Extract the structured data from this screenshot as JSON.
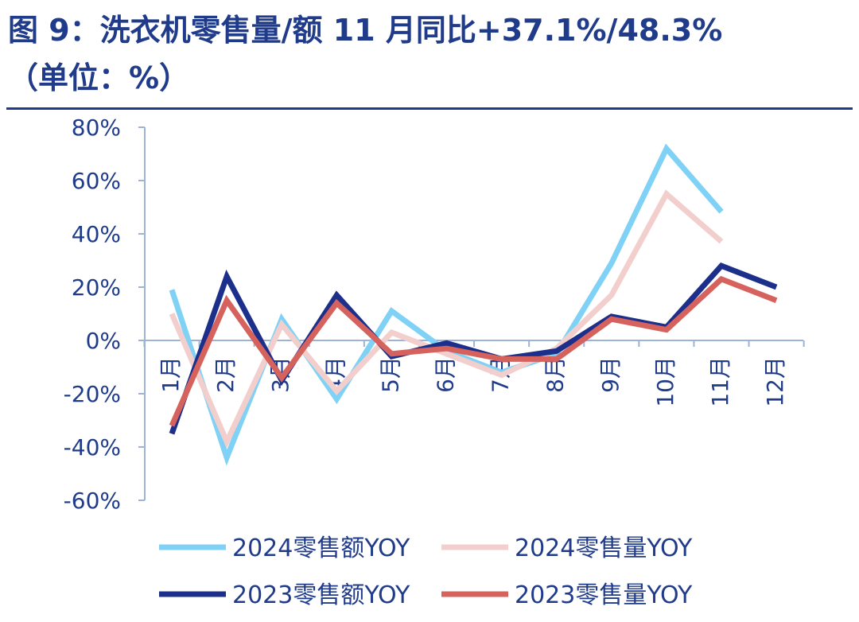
{
  "title_line1": "图 9：洗衣机零售量/额 11 月同比+37.1%/48.3%",
  "title_line2": "（单位：%）",
  "colors": {
    "title": "#1f3b8a",
    "axis": "#9db3d6",
    "s2024_amount": "#7fd2f5",
    "s2024_volume": "#f2cfcc",
    "s2023_amount": "#1c2f8a",
    "s2023_volume": "#d6625e"
  },
  "chart_data": {
    "type": "line",
    "categories": [
      "1月",
      "2月",
      "3月",
      "4月",
      "5月",
      "6月",
      "7月",
      "8月",
      "9月",
      "10月",
      "11月",
      "12月"
    ],
    "y_ticks": [
      "80%",
      "60%",
      "40%",
      "20%",
      "0%",
      "-20%",
      "-40%",
      "-60%"
    ],
    "ylim": [
      -60,
      80
    ],
    "unit": "%",
    "legend_position": "bottom",
    "series": [
      {
        "name": "2024零售额YOY",
        "color_key": "s2024_amount",
        "values": [
          19,
          -44,
          8,
          -22,
          11,
          -4,
          -12,
          -5,
          29,
          72,
          48.3,
          null
        ]
      },
      {
        "name": "2024零售量YOY",
        "color_key": "s2024_volume",
        "values": [
          10,
          -38,
          6,
          -19,
          3,
          -5,
          -13,
          -3,
          17,
          55,
          37.1,
          null
        ]
      },
      {
        "name": "2023零售额YOY",
        "color_key": "s2023_amount",
        "values": [
          -35,
          24,
          -15,
          17,
          -6,
          -1,
          -7,
          -4,
          9,
          5,
          28,
          20
        ]
      },
      {
        "name": "2023零售量YOY",
        "color_key": "s2023_volume",
        "values": [
          -32,
          15,
          -14,
          14,
          -5,
          -3,
          -7,
          -7,
          8,
          4,
          23,
          15
        ]
      }
    ]
  }
}
